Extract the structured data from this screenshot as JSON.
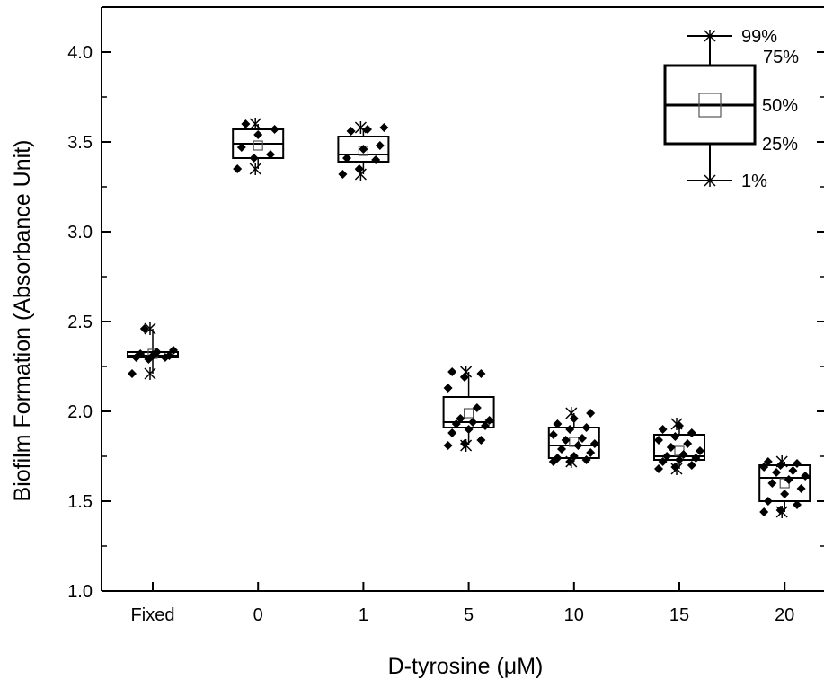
{
  "chart_data": {
    "type": "box",
    "title": "",
    "xlabel": "D-tyrosine (μM)",
    "ylabel": "Biofilm Formation (Absorbance Unit)",
    "ylim": [
      1.0,
      4.25
    ],
    "yticks": [
      "1.0",
      "1.5",
      "2.0",
      "2.5",
      "3.0",
      "3.5",
      "4.0"
    ],
    "categories": [
      "Fixed",
      "0",
      "1",
      "5",
      "10",
      "15",
      "20"
    ],
    "boxes": [
      {
        "category": "Fixed",
        "q1": 2.3,
        "median": 2.31,
        "q3": 2.33,
        "mean": 2.32,
        "p1": 2.21,
        "p99": 2.46,
        "points": [
          2.21,
          2.29,
          2.3,
          2.3,
          2.31,
          2.31,
          2.32,
          2.33,
          2.34,
          2.46
        ]
      },
      {
        "category": "0",
        "q1": 3.41,
        "median": 3.49,
        "q3": 3.57,
        "mean": 3.48,
        "p1": 3.35,
        "p99": 3.6,
        "points": [
          3.35,
          3.41,
          3.43,
          3.47,
          3.54,
          3.57,
          3.6
        ]
      },
      {
        "category": "1",
        "q1": 3.39,
        "median": 3.43,
        "q3": 3.53,
        "mean": 3.45,
        "p1": 3.32,
        "p99": 3.58,
        "points": [
          3.32,
          3.35,
          3.4,
          3.41,
          3.46,
          3.48,
          3.56,
          3.57,
          3.58
        ]
      },
      {
        "category": "5",
        "q1": 1.91,
        "median": 1.94,
        "q3": 2.08,
        "mean": 1.99,
        "p1": 1.81,
        "p99": 2.22,
        "points": [
          1.81,
          1.82,
          1.84,
          1.88,
          1.9,
          1.92,
          1.93,
          1.94,
          1.95,
          1.96,
          2.02,
          2.13,
          2.19,
          2.21,
          2.22
        ]
      },
      {
        "category": "10",
        "q1": 1.74,
        "median": 1.81,
        "q3": 1.91,
        "mean": 1.83,
        "p1": 1.72,
        "p99": 1.99,
        "points": [
          1.72,
          1.72,
          1.73,
          1.74,
          1.75,
          1.77,
          1.79,
          1.81,
          1.82,
          1.84,
          1.85,
          1.87,
          1.9,
          1.91,
          1.93,
          1.96,
          1.99
        ]
      },
      {
        "category": "15",
        "q1": 1.73,
        "median": 1.75,
        "q3": 1.87,
        "mean": 1.78,
        "p1": 1.68,
        "p99": 1.93,
        "points": [
          1.68,
          1.69,
          1.7,
          1.72,
          1.73,
          1.74,
          1.75,
          1.76,
          1.78,
          1.8,
          1.82,
          1.84,
          1.86,
          1.88,
          1.9,
          1.92
        ]
      },
      {
        "category": "20",
        "q1": 1.5,
        "median": 1.63,
        "q3": 1.7,
        "mean": 1.6,
        "p1": 1.44,
        "p99": 1.72,
        "points": [
          1.44,
          1.45,
          1.48,
          1.5,
          1.54,
          1.57,
          1.6,
          1.62,
          1.64,
          1.66,
          1.67,
          1.69,
          1.7,
          1.71,
          1.72
        ]
      }
    ],
    "legend": {
      "placement": "top-right",
      "labels": [
        "99%",
        "75%",
        "50%",
        "25%",
        "1%"
      ]
    },
    "grid": false
  }
}
